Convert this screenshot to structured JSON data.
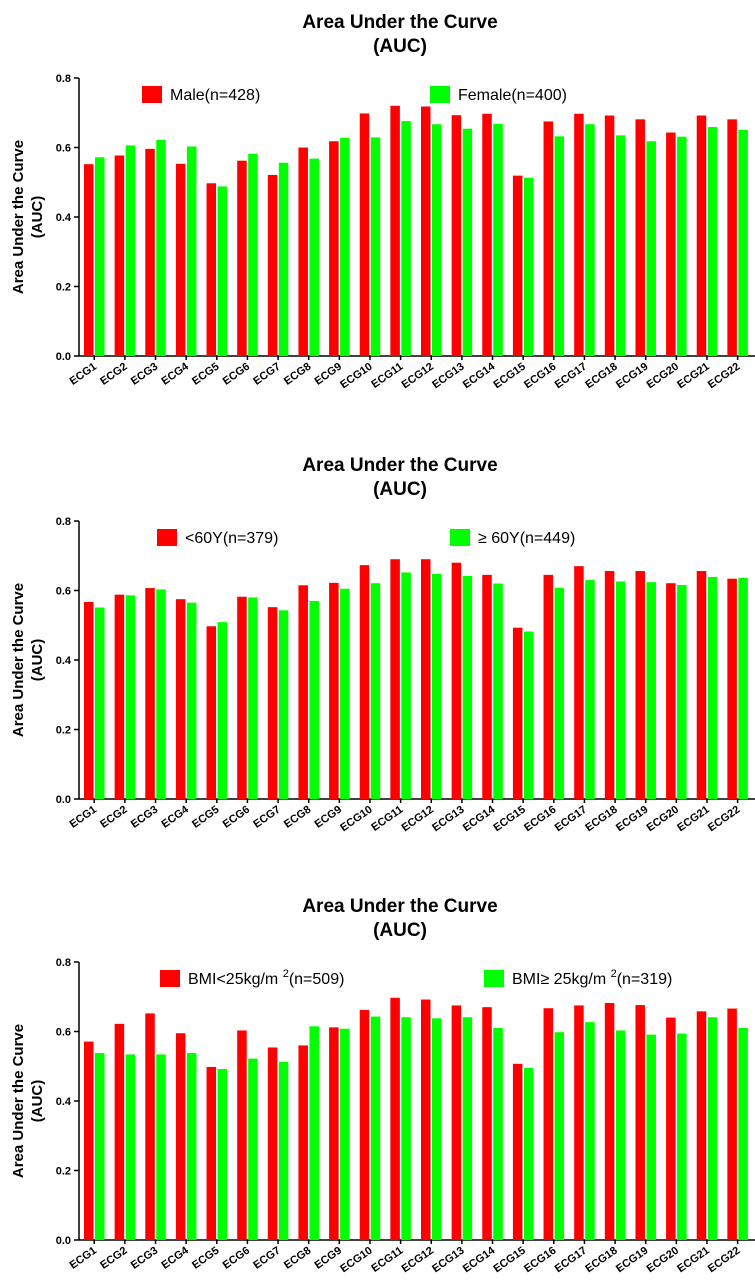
{
  "colors": {
    "red": "#ff0000",
    "green": "#00ff00"
  },
  "chart_data": [
    {
      "type": "bar",
      "title": "Area Under the Curve",
      "subtitle": "(AUC)",
      "ylabel": "Area Under the Curve",
      "ylabel2": "(AUC)",
      "ylim": [
        0,
        0.8
      ],
      "yticks": [
        "0.0",
        "0.2",
        "0.4",
        "0.6",
        "0.8"
      ],
      "categories": [
        "ECG1",
        "ECG2",
        "ECG3",
        "ECG4",
        "ECG5",
        "ECG6",
        "ECG7",
        "ECG8",
        "ECG9",
        "ECG10",
        "ECG11",
        "ECG12",
        "ECG13",
        "ECG14",
        "ECG15",
        "ECG16",
        "ECG17",
        "ECG18",
        "ECG19",
        "ECG20",
        "ECG21",
        "ECG22"
      ],
      "series": [
        {
          "name": "Male(n=428)",
          "values": [
            0.552,
            0.577,
            0.596,
            0.553,
            0.497,
            0.562,
            0.521,
            0.6,
            0.618,
            0.698,
            0.72,
            0.718,
            0.693,
            0.697,
            0.519,
            0.675,
            0.697,
            0.692,
            0.681,
            0.643,
            0.692,
            0.681
          ]
        },
        {
          "name": "Female(n=400)",
          "values": [
            0.572,
            0.606,
            0.622,
            0.603,
            0.488,
            0.582,
            0.556,
            0.568,
            0.628,
            0.629,
            0.676,
            0.667,
            0.654,
            0.668,
            0.513,
            0.632,
            0.667,
            0.635,
            0.618,
            0.631,
            0.659,
            0.651
          ]
        }
      ],
      "legend_name_parts": [
        {
          "main": "Male(n=428)"
        },
        {
          "main": "Female(n=400)"
        }
      ]
    },
    {
      "type": "bar",
      "title": "Area Under the Curve",
      "subtitle": "(AUC)",
      "ylabel": "Area Under the Curve",
      "ylabel2": "(AUC)",
      "ylim": [
        0,
        0.8
      ],
      "yticks": [
        "0.0",
        "0.2",
        "0.4",
        "0.6",
        "0.8"
      ],
      "categories": [
        "ECG1",
        "ECG2",
        "ECG3",
        "ECG4",
        "ECG5",
        "ECG6",
        "ECG7",
        "ECG8",
        "ECG9",
        "ECG10",
        "ECG11",
        "ECG12",
        "ECG13",
        "ECG14",
        "ECG15",
        "ECG16",
        "ECG17",
        "ECG18",
        "ECG19",
        "ECG20",
        "ECG21",
        "ECG22"
      ],
      "series": [
        {
          "name": "<60Y(n=379)",
          "values": [
            0.567,
            0.588,
            0.607,
            0.575,
            0.497,
            0.582,
            0.552,
            0.615,
            0.622,
            0.673,
            0.69,
            0.69,
            0.68,
            0.645,
            0.493,
            0.645,
            0.67,
            0.656,
            0.656,
            0.621,
            0.656,
            0.634
          ]
        },
        {
          "name": "≥ 60Y(n=449)",
          "values": [
            0.551,
            0.586,
            0.603,
            0.565,
            0.509,
            0.58,
            0.543,
            0.57,
            0.605,
            0.621,
            0.652,
            0.648,
            0.642,
            0.62,
            0.482,
            0.608,
            0.63,
            0.626,
            0.624,
            0.616,
            0.639,
            0.636
          ]
        }
      ],
      "legend_name_parts": [
        {
          "main": "<60Y(n=379)"
        },
        {
          "main": "≥ 60Y(n=449)"
        }
      ]
    },
    {
      "type": "bar",
      "title": "Area Under the Curve",
      "subtitle": "(AUC)",
      "ylabel": "Area Under the Curve",
      "ylabel2": "(AUC)",
      "ylim": [
        0,
        0.8
      ],
      "yticks": [
        "0.0",
        "0.2",
        "0.4",
        "0.6",
        "0.8"
      ],
      "categories": [
        "ECG1",
        "ECG2",
        "ECG3",
        "ECG4",
        "ECG5",
        "ECG6",
        "ECG7",
        "ECG8",
        "ECG9",
        "ECG10",
        "ECG11",
        "ECG12",
        "ECG13",
        "ECG14",
        "ECG15",
        "ECG16",
        "ECG17",
        "ECG18",
        "ECG19",
        "ECG20",
        "ECG21",
        "ECG22"
      ],
      "series": [
        {
          "name": "BMI<25kg/m2(n=509)",
          "values": [
            0.571,
            0.622,
            0.652,
            0.595,
            0.498,
            0.603,
            0.554,
            0.56,
            0.612,
            0.662,
            0.697,
            0.692,
            0.675,
            0.67,
            0.507,
            0.667,
            0.675,
            0.682,
            0.676,
            0.64,
            0.658,
            0.666
          ]
        },
        {
          "name": "BMI≥ 25kg/m2(n=319)",
          "values": [
            0.538,
            0.534,
            0.534,
            0.538,
            0.492,
            0.522,
            0.513,
            0.615,
            0.608,
            0.643,
            0.641,
            0.638,
            0.641,
            0.61,
            0.495,
            0.598,
            0.627,
            0.603,
            0.591,
            0.594,
            0.641,
            0.61
          ]
        }
      ],
      "legend_name_parts": [
        {
          "main": "BMI<25kg/m ",
          "sup": "2",
          "tail": "(n=509)"
        },
        {
          "main": "BMI≥ 25kg/m ",
          "sup": "2",
          "tail": "(n=319)"
        }
      ]
    }
  ]
}
